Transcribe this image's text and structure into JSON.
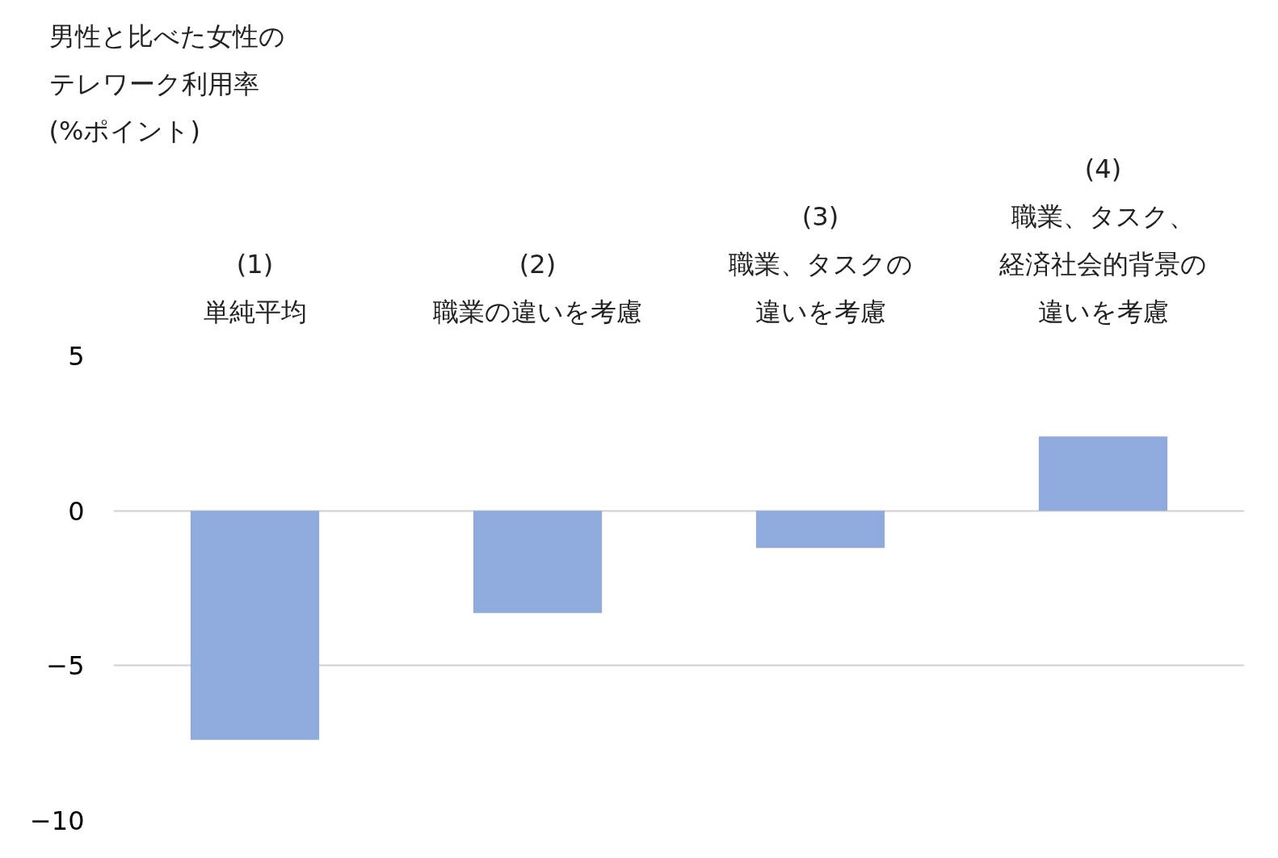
{
  "chart_data": {
    "type": "bar",
    "ylabel": "男性と比べた女性のテレワーク利用率\n(%ポイント)",
    "categories": [
      "(1)\n単純平均",
      "(2)\n職業の違いを考慮",
      "(3)\n職業、タスクの違いを考慮",
      "(4)\n職業、タスク、経済社会的背景の違いを考慮"
    ],
    "values": [
      -7.4,
      -3.3,
      -1.2,
      2.4
    ],
    "color": "#8faadc",
    "ylim": [
      -10,
      5
    ],
    "yticks": [
      -10,
      -5,
      0,
      5
    ],
    "grid": "y"
  }
}
